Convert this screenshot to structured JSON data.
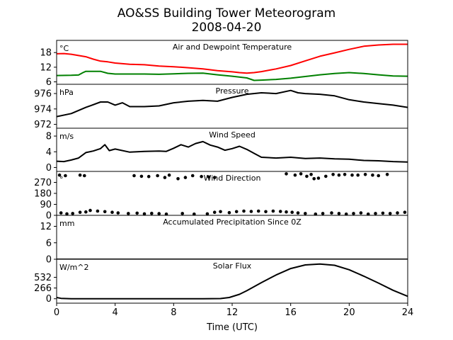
{
  "figure": {
    "title_line1": "AO&SS Building Tower Meteorogram",
    "title_line2": "2008-04-20",
    "xlabel": "Time (UTC)",
    "xticks": [
      0,
      4,
      8,
      12,
      16,
      20,
      24
    ],
    "xlim": [
      0,
      24
    ]
  },
  "chart_data": [
    {
      "type": "line",
      "title": "Air and Dewpoint Temperature",
      "unit": "°C",
      "ylim": [
        5,
        23
      ],
      "yticks": [
        6,
        12,
        18
      ],
      "series": [
        {
          "color": "#ff0000",
          "x": [
            0,
            0.5,
            1,
            1.5,
            2,
            2.5,
            3,
            3.5,
            4,
            5,
            6,
            7,
            8,
            9,
            10,
            11,
            12,
            12.5,
            13,
            13.5,
            14,
            15,
            16,
            17,
            18,
            19,
            20,
            21,
            22,
            23,
            24
          ],
          "y": [
            17.5,
            17.6,
            17.3,
            16.8,
            16.3,
            15.3,
            14.5,
            14.2,
            13.7,
            13.2,
            13,
            12.5,
            12.2,
            11.8,
            11.3,
            10.6,
            10.1,
            9.8,
            9.6,
            9.8,
            10.2,
            11.3,
            12.7,
            14.6,
            16.5,
            17.9,
            19.3,
            20.6,
            21.1,
            21.4,
            21.4
          ]
        },
        {
          "color": "#008000",
          "x": [
            0,
            1,
            1.5,
            1.8,
            2,
            3,
            3.5,
            4,
            5,
            6,
            7,
            8,
            9,
            10,
            11,
            12,
            13,
            13.5,
            14,
            15,
            16,
            17,
            18,
            19,
            20,
            21,
            22,
            23,
            24
          ],
          "y": [
            8.6,
            8.7,
            8.8,
            9.8,
            10.3,
            10.3,
            9.5,
            9.2,
            9.2,
            9.2,
            9.1,
            9.3,
            9.5,
            9.6,
            8.9,
            8.3,
            7.6,
            6.6,
            6.7,
            7,
            7.5,
            8.2,
            8.9,
            9.4,
            9.8,
            9.4,
            8.9,
            8.4,
            8.3
          ]
        }
      ]
    },
    {
      "type": "line",
      "title": "Pressure",
      "unit": "hPa",
      "ylim": [
        971.5,
        977.2
      ],
      "yticks": [
        972,
        974,
        976
      ],
      "series": [
        {
          "color": "#000000",
          "x": [
            0,
            1,
            2,
            3,
            3.5,
            4,
            4.5,
            5,
            6,
            7,
            8,
            9,
            10,
            11,
            12,
            13,
            14,
            15,
            16,
            16.5,
            17,
            18,
            19,
            20,
            21,
            22,
            23,
            24
          ],
          "y": [
            973,
            973.4,
            974.2,
            974.9,
            974.9,
            974.5,
            974.8,
            974.3,
            974.3,
            974.4,
            974.8,
            975,
            975.1,
            975,
            975.5,
            975.9,
            976.1,
            976,
            976.4,
            976.1,
            976,
            975.9,
            975.7,
            975.2,
            974.9,
            974.7,
            974.5,
            974.2
          ]
        }
      ]
    },
    {
      "type": "line",
      "title": "Wind Speed",
      "unit": "m/s",
      "ylim": [
        -1,
        10
      ],
      "yticks": [
        0,
        4,
        8
      ],
      "series": [
        {
          "color": "#000000",
          "x": [
            0,
            0.5,
            1,
            1.5,
            2,
            2.5,
            3,
            3.3,
            3.6,
            4,
            5,
            6,
            7,
            7.5,
            8,
            8.5,
            9,
            9.5,
            10,
            10.5,
            11,
            11.5,
            12,
            12.5,
            13,
            13.5,
            14,
            15,
            16,
            17,
            18,
            19,
            20,
            21,
            22,
            23,
            24
          ],
          "y": [
            1.6,
            1.5,
            1.9,
            2.4,
            3.8,
            4.2,
            4.8,
            5.8,
            4.3,
            4.7,
            3.9,
            4.1,
            4.2,
            4.1,
            4.9,
            5.8,
            5.2,
            6.1,
            6.6,
            5.7,
            5.2,
            4.4,
            4.8,
            5.4,
            4.6,
            3.6,
            2.6,
            2.4,
            2.6,
            2.3,
            2.4,
            2.2,
            2.1,
            1.8,
            1.7,
            1.5,
            1.4
          ]
        }
      ]
    },
    {
      "type": "scatter",
      "title": "Wind Direction",
      "unit": "°",
      "ylim": [
        0,
        360
      ],
      "yticks": [
        0,
        90,
        180,
        270
      ],
      "series": [
        {
          "color": "#000000",
          "points": [
            [
              0.2,
              330
            ],
            [
              0.6,
              325
            ],
            [
              1.6,
              330
            ],
            [
              1.9,
              325
            ],
            [
              0.3,
              20
            ],
            [
              0.7,
              12
            ],
            [
              1.1,
              15
            ],
            [
              1.6,
              25
            ],
            [
              2.0,
              28
            ],
            [
              2.3,
              40
            ],
            [
              2.8,
              35
            ],
            [
              3.3,
              30
            ],
            [
              3.8,
              25
            ],
            [
              4.2,
              20
            ],
            [
              4.9,
              15
            ],
            [
              5.5,
              18
            ],
            [
              6.0,
              12
            ],
            [
              6.5,
              16
            ],
            [
              7.0,
              14
            ],
            [
              7.5,
              10
            ],
            [
              5.3,
              325
            ],
            [
              5.8,
              320
            ],
            [
              6.3,
              318
            ],
            [
              6.9,
              325
            ],
            [
              7.4,
              310
            ],
            [
              7.7,
              330
            ],
            [
              8.3,
              300
            ],
            [
              8.8,
              310
            ],
            [
              9.3,
              325
            ],
            [
              9.9,
              318
            ],
            [
              10.4,
              315
            ],
            [
              10.8,
              310
            ],
            [
              8.6,
              15
            ],
            [
              9.4,
              10
            ],
            [
              10.3,
              12
            ],
            [
              10.8,
              25
            ],
            [
              11.2,
              30
            ],
            [
              11.8,
              22
            ],
            [
              12.3,
              30
            ],
            [
              12.8,
              35
            ],
            [
              13.3,
              32
            ],
            [
              13.8,
              35
            ],
            [
              14.3,
              30
            ],
            [
              14.8,
              35
            ],
            [
              15.3,
              32
            ],
            [
              15.7,
              28
            ],
            [
              16.1,
              25
            ],
            [
              16.5,
              20
            ],
            [
              17.0,
              15
            ],
            [
              15.7,
              340
            ],
            [
              16.3,
              330
            ],
            [
              16.7,
              340
            ],
            [
              17.1,
              320
            ],
            [
              17.4,
              335
            ],
            [
              17.6,
              300
            ],
            [
              17.9,
              305
            ],
            [
              18.4,
              320
            ],
            [
              18.9,
              335
            ],
            [
              19.3,
              330
            ],
            [
              19.7,
              335
            ],
            [
              20.2,
              330
            ],
            [
              20.6,
              330
            ],
            [
              21.1,
              335
            ],
            [
              21.6,
              330
            ],
            [
              22.0,
              325
            ],
            [
              22.6,
              335
            ],
            [
              17.7,
              10
            ],
            [
              18.2,
              15
            ],
            [
              18.8,
              20
            ],
            [
              19.3,
              15
            ],
            [
              19.8,
              10
            ],
            [
              20.3,
              15
            ],
            [
              20.8,
              20
            ],
            [
              21.3,
              10
            ],
            [
              21.8,
              15
            ],
            [
              22.3,
              18
            ],
            [
              22.8,
              15
            ],
            [
              23.3,
              20
            ],
            [
              23.8,
              25
            ]
          ]
        }
      ]
    },
    {
      "type": "area",
      "title": "Accumulated Precipitation Since 0Z",
      "unit": "mm",
      "ylim": [
        0,
        16
      ],
      "yticks": [
        0,
        6,
        12
      ],
      "series": [
        {
          "color": "#000000",
          "x": [
            0,
            24
          ],
          "y": [
            0,
            0
          ]
        }
      ]
    },
    {
      "type": "line",
      "title": "Solar Flux",
      "unit": "W/m^2",
      "ylim": [
        -110,
        980
      ],
      "yticks": [
        0,
        266,
        532
      ],
      "series": [
        {
          "color": "#000000",
          "x": [
            0,
            0.3,
            1,
            2,
            4,
            6,
            8,
            10,
            11.2,
            11.8,
            12.5,
            13,
            14,
            15,
            16,
            17,
            18,
            19,
            20,
            21,
            22,
            23,
            24
          ],
          "y": [
            30,
            10,
            0,
            0,
            0,
            0,
            0,
            0,
            5,
            30,
            110,
            200,
            400,
            590,
            750,
            840,
            860,
            830,
            720,
            560,
            390,
            210,
            60
          ]
        }
      ]
    }
  ]
}
